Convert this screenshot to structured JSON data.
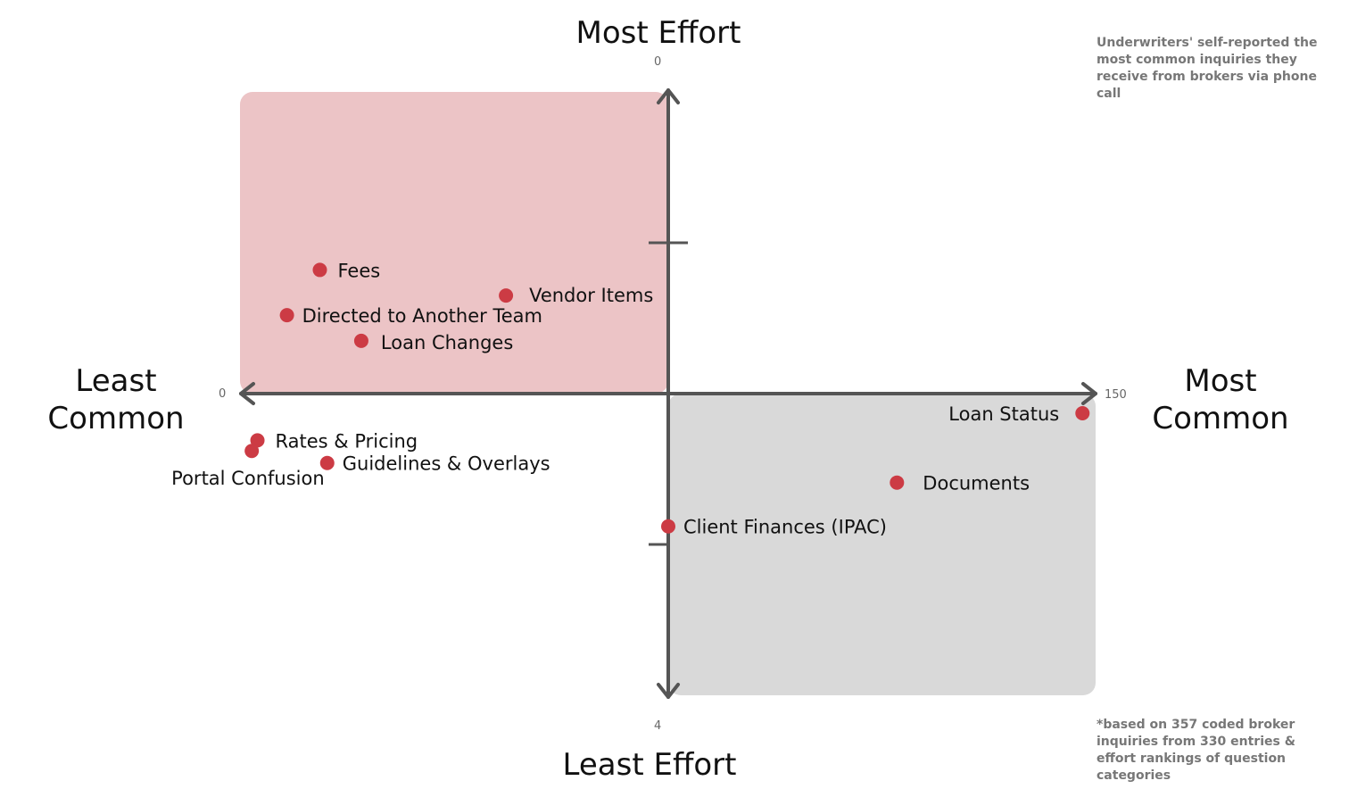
{
  "chart_data": {
    "type": "scatter",
    "title": "",
    "x_axis": {
      "range": [
        0,
        150
      ],
      "tick_min_label": "0",
      "tick_max_label": "150",
      "label_low": "Least\nCommon",
      "label_high": "Most\nCommon"
    },
    "y_axis": {
      "range": [
        0,
        4
      ],
      "inverted": true,
      "tick_min_label": "0",
      "tick_max_label": "4",
      "label_low": "Most Effort",
      "label_high": "Least Effort"
    },
    "quadrants": [
      {
        "name": "high-effort-low-frequency",
        "color": "#ecc4c6",
        "x": [
          0,
          75
        ],
        "y": [
          0,
          2
        ]
      },
      {
        "name": "low-effort-high-frequency",
        "color": "#d9d9d9",
        "x": [
          75,
          150
        ],
        "y": [
          2,
          4
        ]
      }
    ],
    "point_color": "#cc3b44",
    "points": [
      {
        "label": "Fees",
        "x": 13.6,
        "y": 1.18
      },
      {
        "label": "Vendor Items",
        "x": 46.4,
        "y": 1.35
      },
      {
        "label": "Directed to Another Team",
        "x": 7.8,
        "y": 1.48
      },
      {
        "label": "Loan Changes",
        "x": 20.9,
        "y": 1.65
      },
      {
        "label": "Rates & Pricing",
        "x": 2.6,
        "y": 2.31
      },
      {
        "label": "Portal Confusion",
        "x": 1.6,
        "y": 2.38
      },
      {
        "label": "Guidelines & Overlays",
        "x": 14.9,
        "y": 2.46
      },
      {
        "label": "Loan Status",
        "x": 148.0,
        "y": 2.13
      },
      {
        "label": "Documents",
        "x": 115.3,
        "y": 2.59
      },
      {
        "label": "Client Finances (IPAC)",
        "x": 75.0,
        "y": 2.88
      }
    ],
    "notes": {
      "top_right": "Underwriters' self-reported the most common inquiries they receive from brokers via phone call",
      "bottom_right": "*based on 357 coded broker inquiries from 330 entries & effort rankings of question categories"
    },
    "axis_color": "#555555"
  }
}
